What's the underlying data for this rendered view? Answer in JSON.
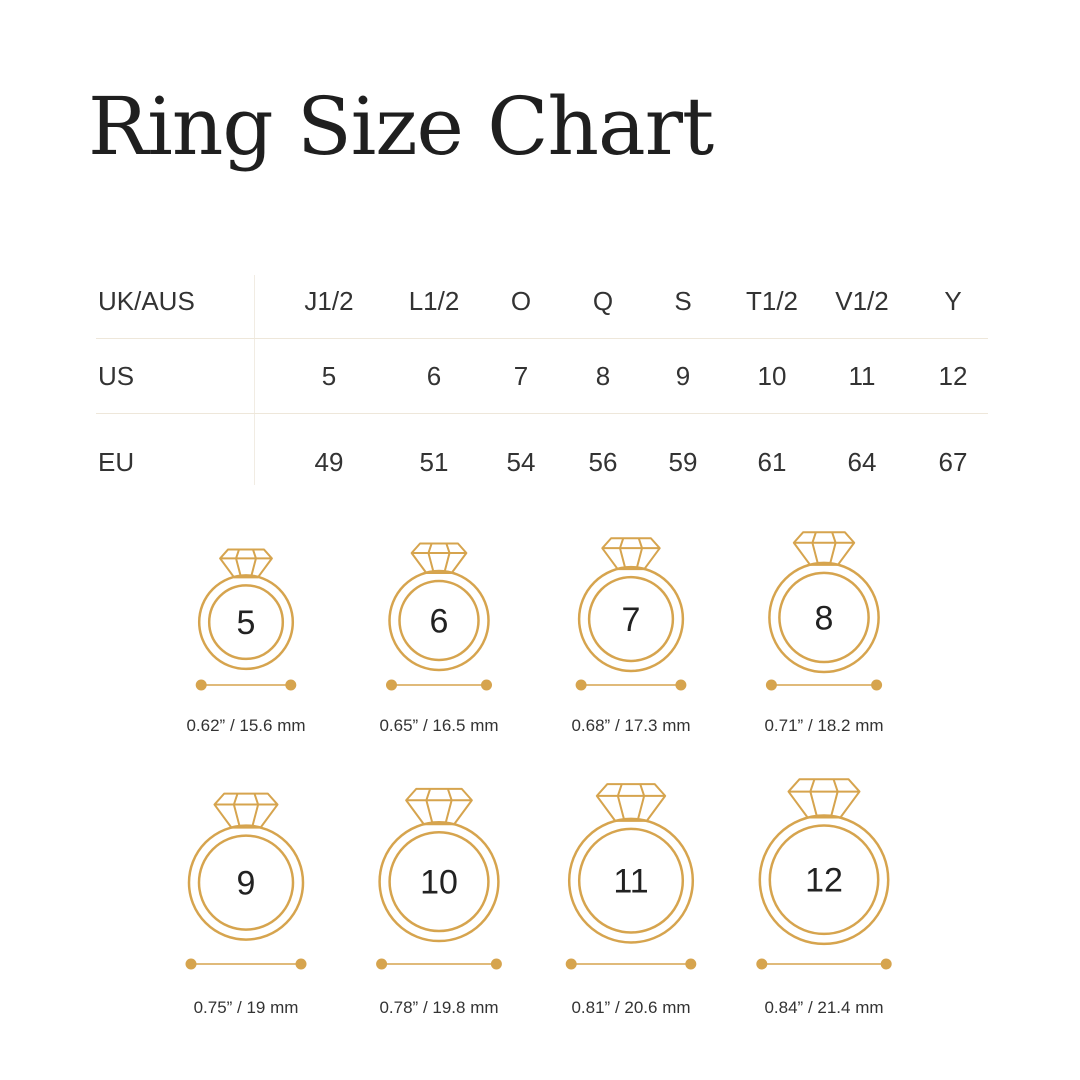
{
  "title": "Ring Size Chart",
  "accent_color": "#d6a44e",
  "table": {
    "rows": [
      {
        "label": "UK/AUS",
        "values": [
          "J1/2",
          "L1/2",
          "O",
          "Q",
          "S",
          "T1/2",
          "V1/2",
          "Y"
        ]
      },
      {
        "label": "US",
        "values": [
          "5",
          "6",
          "7",
          "8",
          "9",
          "10",
          "11",
          "12"
        ]
      },
      {
        "label": "EU",
        "values": [
          "49",
          "51",
          "54",
          "56",
          "59",
          "61",
          "64",
          "67"
        ]
      }
    ]
  },
  "rings": [
    {
      "size": "5",
      "inches": 0.62,
      "mm": 15.6,
      "label": "0.62” / 15.6 mm"
    },
    {
      "size": "6",
      "inches": 0.65,
      "mm": 16.5,
      "label": "0.65” / 16.5 mm"
    },
    {
      "size": "7",
      "inches": 0.68,
      "mm": 17.3,
      "label": "0.68” / 17.3 mm"
    },
    {
      "size": "8",
      "inches": 0.71,
      "mm": 18.2,
      "label": "0.71” / 18.2 mm"
    },
    {
      "size": "9",
      "inches": 0.75,
      "mm": 19,
      "label": "0.75” / 19 mm"
    },
    {
      "size": "10",
      "inches": 0.78,
      "mm": 19.8,
      "label": "0.78” / 19.8 mm"
    },
    {
      "size": "11",
      "inches": 0.81,
      "mm": 20.6,
      "label": "0.81” / 20.6 mm"
    },
    {
      "size": "12",
      "inches": 0.84,
      "mm": 21.4,
      "label": "0.84” / 21.4 mm"
    }
  ]
}
